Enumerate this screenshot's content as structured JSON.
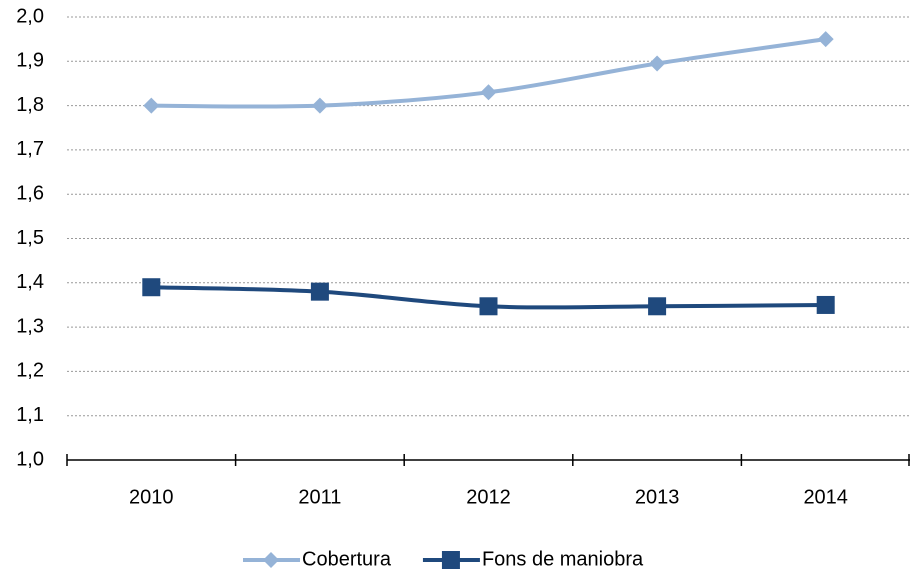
{
  "chart_data": {
    "type": "line",
    "categories": [
      "2010",
      "2011",
      "2012",
      "2013",
      "2014"
    ],
    "series": [
      {
        "name": "Cobertura",
        "color": "#95b3d7",
        "marker": "diamond",
        "values": [
          1.8,
          1.8,
          1.83,
          1.895,
          1.95
        ]
      },
      {
        "name": "Fons de maniobra",
        "color": "#1f497d",
        "marker": "square",
        "values": [
          1.39,
          1.38,
          1.347,
          1.347,
          1.35
        ]
      }
    ],
    "ylim": [
      1.0,
      2.0
    ],
    "yticks": [
      {
        "value": 1.0,
        "label": "1,0"
      },
      {
        "value": 1.1,
        "label": "1,1"
      },
      {
        "value": 1.2,
        "label": "1,2"
      },
      {
        "value": 1.3,
        "label": "1,3"
      },
      {
        "value": 1.4,
        "label": "1,4"
      },
      {
        "value": 1.5,
        "label": "1,5"
      },
      {
        "value": 1.6,
        "label": "1,6"
      },
      {
        "value": 1.7,
        "label": "1,7"
      },
      {
        "value": 1.8,
        "label": "1,8"
      },
      {
        "value": 1.9,
        "label": "1,9"
      },
      {
        "value": 2.0,
        "label": "2,0"
      }
    ],
    "grid": true,
    "smooth": true,
    "legend": "bottom"
  }
}
